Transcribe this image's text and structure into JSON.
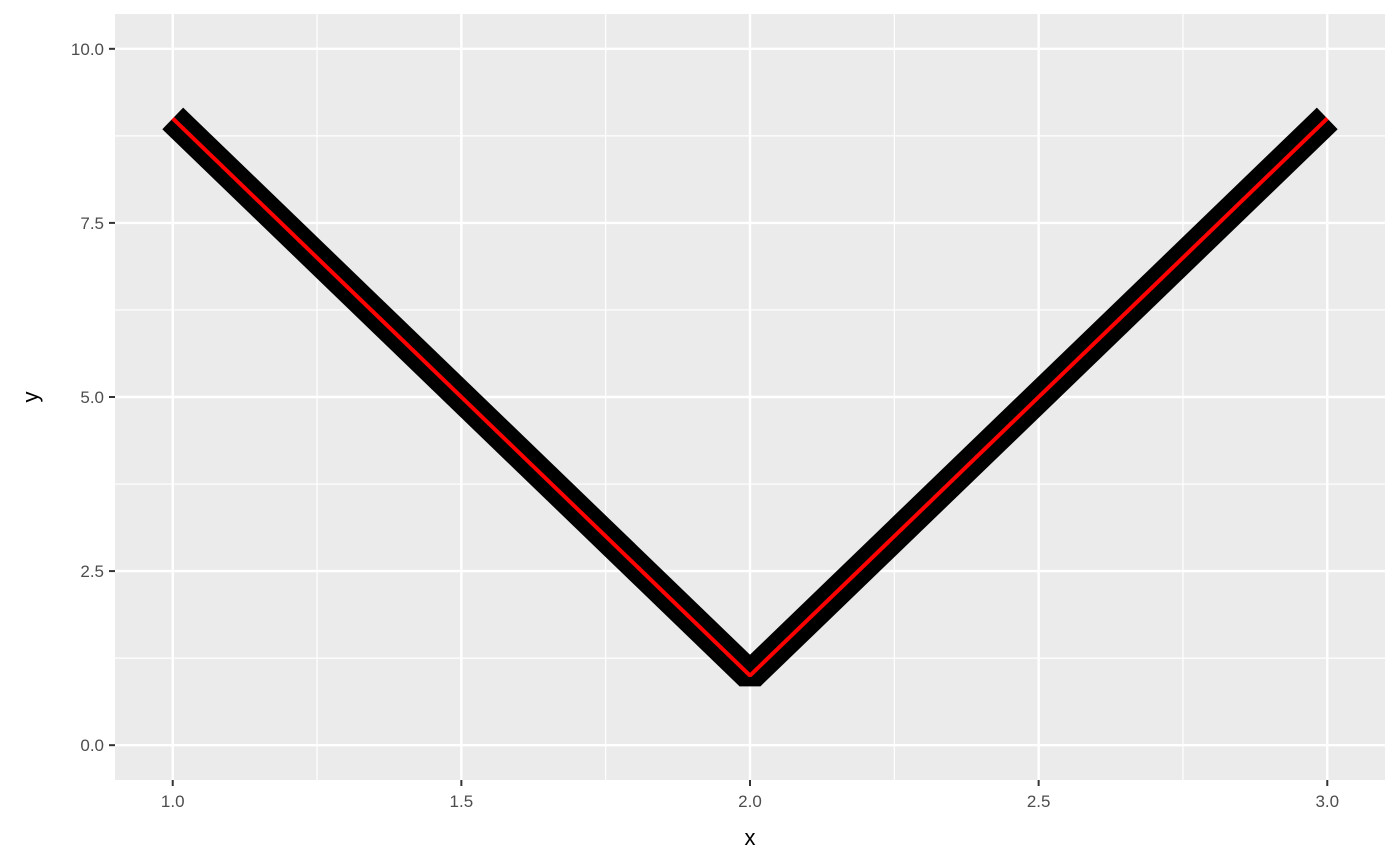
{
  "chart_data": {
    "type": "line",
    "title": "",
    "xlabel": "x",
    "ylabel": "y",
    "xlim": [
      0.9,
      3.1
    ],
    "ylim": [
      -0.5,
      10.5
    ],
    "x_ticks": [
      "1.0",
      "1.5",
      "2.0",
      "2.5",
      "3.0"
    ],
    "y_ticks": [
      "0.0",
      "2.5",
      "5.0",
      "7.5",
      "10.0"
    ],
    "grid": true,
    "legend": "none",
    "series": [
      {
        "x": [
          1,
          2,
          3
        ],
        "y": [
          9,
          1,
          9
        ],
        "color": "#000000",
        "style": "thick"
      },
      {
        "x": [
          1,
          2,
          3
        ],
        "y": [
          9,
          1,
          9
        ],
        "color": "#ff0000",
        "style": "thin"
      }
    ],
    "panel_background": "#ebebeb"
  }
}
